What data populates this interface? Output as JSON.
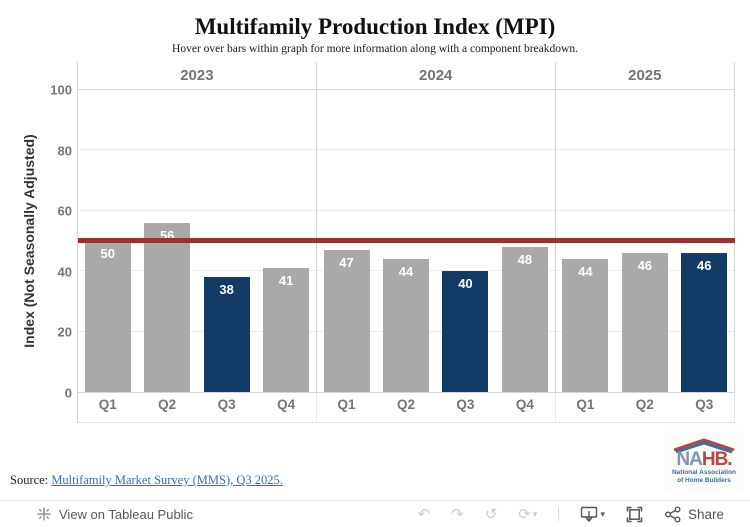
{
  "title": "Multifamily Production Index (MPI)",
  "subtitle": "Hover over bars within graph for more information along with a component breakdown.",
  "chart_data": {
    "type": "bar",
    "title": "Multifamily Production Index (MPI)",
    "subtitle": "Hover over bars within graph for more information along with a component breakdown.",
    "xlabel": "",
    "ylabel": "Index (Not Seasonally Adjusted)",
    "ylim": [
      0,
      100
    ],
    "yticks": [
      0,
      20,
      40,
      60,
      80,
      100
    ],
    "grid": "horizontal",
    "legend": "none",
    "reference_line": {
      "value": 50,
      "color": "#973331"
    },
    "groups": [
      {
        "year": "2023",
        "bars": [
          {
            "label": "Q1",
            "value": 50,
            "highlight": false
          },
          {
            "label": "Q2",
            "value": 56,
            "highlight": false
          },
          {
            "label": "Q3",
            "value": 38,
            "highlight": true
          },
          {
            "label": "Q4",
            "value": 41,
            "highlight": false
          }
        ]
      },
      {
        "year": "2024",
        "bars": [
          {
            "label": "Q1",
            "value": 47,
            "highlight": false
          },
          {
            "label": "Q2",
            "value": 44,
            "highlight": false
          },
          {
            "label": "Q3",
            "value": 40,
            "highlight": true
          },
          {
            "label": "Q4",
            "value": 48,
            "highlight": false
          }
        ]
      },
      {
        "year": "2025",
        "bars": [
          {
            "label": "Q1",
            "value": 44,
            "highlight": false
          },
          {
            "label": "Q2",
            "value": 46,
            "highlight": false
          },
          {
            "label": "Q3",
            "value": 46,
            "highlight": true
          }
        ]
      }
    ],
    "colors": {
      "bar": "#a9a9a9",
      "bar_highlight": "#123c66",
      "bar_label": "#ffffff",
      "reference_line": "#973331",
      "axis_text": "#757575"
    }
  },
  "footer": {
    "source_prefix": "Source:",
    "source_link_text": "Multifamily Market Survey (MMS), Q3 2025."
  },
  "logo": {
    "na": "NA",
    "hb": "HB.",
    "line1": "National Association",
    "line2": "of Home Builders"
  },
  "toolbar": {
    "view_label": "View on Tableau Public",
    "share_label": "Share",
    "icons": {
      "undo": "↶",
      "redo": "↷",
      "reset": "↺",
      "refresh": "⟳",
      "caret": "▾"
    }
  }
}
